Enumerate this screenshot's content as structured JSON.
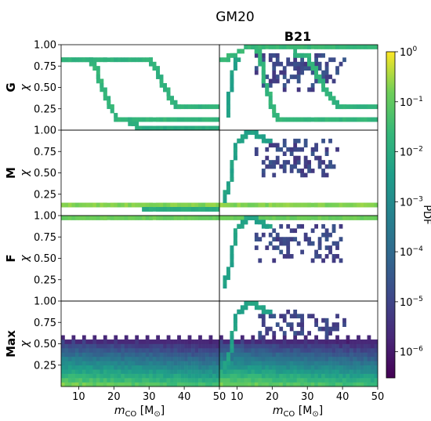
{
  "chart_data": {
    "type": "heatmap",
    "title": "GM20",
    "column_titles": [
      "",
      "B21"
    ],
    "row_labels": [
      "G",
      "M",
      "F",
      "Max"
    ],
    "ylabel": "χ",
    "xlabel_main": "m",
    "xlabel_sub": "CO",
    "xlabel_unit": " [M",
    "xlabel_unit_sub": "⊙",
    "xlabel_close": "]",
    "xlim": [
      5,
      50
    ],
    "ylim": [
      0.0,
      1.0
    ],
    "x_ticks": [
      10,
      20,
      30,
      40,
      50
    ],
    "y_ticks": [
      "0.25",
      "0.50",
      "0.75",
      "1.00"
    ],
    "colorbar": {
      "label": "PDF",
      "scale": "log",
      "range": [
        3e-07,
        1
      ],
      "ticks": [
        {
          "value": 1.0,
          "base": "10",
          "exp": "0"
        },
        {
          "value": 0.1,
          "base": "10",
          "exp": "−1"
        },
        {
          "value": 0.01,
          "base": "10",
          "exp": "−2"
        },
        {
          "value": 0.001,
          "base": "10",
          "exp": "−3"
        },
        {
          "value": 0.0001,
          "base": "10",
          "exp": "−4"
        },
        {
          "value": 1e-05,
          "base": "10",
          "exp": "−5"
        },
        {
          "value": 1e-06,
          "base": "10",
          "exp": "−6"
        }
      ]
    },
    "panels": [
      {
        "row": "G",
        "model": "GM20",
        "tracks": [
          {
            "x": [
              5,
              13,
              15,
              17,
              19,
              21,
              50
            ],
            "y": [
              0.84,
              0.84,
              0.7,
              0.48,
              0.28,
              0.12,
              0.12
            ],
            "level": -1.7
          },
          {
            "x": [
              5,
              30,
              32,
              34,
              36,
              38,
              50
            ],
            "y": [
              0.84,
              0.84,
              0.7,
              0.52,
              0.38,
              0.26,
              0.26
            ],
            "level": -1.8
          },
          {
            "x": [
              24,
              27,
              50
            ],
            "y": [
              0.12,
              0.03,
              0.03
            ],
            "level": -2.0
          }
        ],
        "cloud": null,
        "max_fill": false
      },
      {
        "row": "G",
        "model": "B21",
        "tracks": [
          {
            "x": [
              5,
              7,
              9,
              12,
              14,
              50
            ],
            "y": [
              0.84,
              0.84,
              0.88,
              0.95,
              0.98,
              0.98
            ],
            "level": -1.6
          },
          {
            "x": [
              7,
              8,
              9,
              10
            ],
            "y": [
              0.15,
              0.45,
              0.7,
              0.84
            ],
            "level": -2.3
          },
          {
            "x": [
              14,
              16,
              17,
              18,
              19,
              20,
              22,
              50
            ],
            "y": [
              0.98,
              0.9,
              0.75,
              0.55,
              0.4,
              0.25,
              0.1,
              0.1
            ],
            "level": -1.7
          },
          {
            "x": [
              26,
              30,
              32,
              34,
              36,
              38,
              40,
              50
            ],
            "y": [
              0.9,
              0.85,
              0.7,
              0.55,
              0.42,
              0.3,
              0.25,
              0.25
            ],
            "level": -1.8
          }
        ],
        "cloud": {
          "x0": 15,
          "x1": 41,
          "y0": 0.45,
          "y1": 0.9
        },
        "max_fill": false
      },
      {
        "row": "M",
        "model": "GM20",
        "tracks": [
          {
            "x": [
              5,
              50
            ],
            "y": [
              0.1,
              0.1
            ],
            "level": -0.7
          },
          {
            "x": [
              28,
              50
            ],
            "y": [
              0.07,
              0.07
            ],
            "level": -2.0
          }
        ],
        "cloud": null,
        "max_fill": false
      },
      {
        "row": "M",
        "model": "B21",
        "tracks": [
          {
            "x": [
              5,
              50
            ],
            "y": [
              0.1,
              0.1
            ],
            "level": -0.7
          },
          {
            "x": [
              6,
              8,
              9,
              10,
              12,
              14,
              17,
              19
            ],
            "y": [
              0.15,
              0.4,
              0.65,
              0.85,
              0.94,
              0.97,
              0.93,
              0.85
            ],
            "level": -2.3
          }
        ],
        "cloud": {
          "x0": 15,
          "x1": 41,
          "y0": 0.45,
          "y1": 0.9
        },
        "max_fill": false
      },
      {
        "row": "F",
        "model": "GM20",
        "tracks": [
          {
            "x": [
              5,
              50
            ],
            "y": [
              0.99,
              0.99
            ],
            "level": -0.9
          }
        ],
        "cloud": null,
        "max_fill": false
      },
      {
        "row": "F",
        "model": "B21",
        "tracks": [
          {
            "x": [
              5,
              50
            ],
            "y": [
              0.99,
              0.99
            ],
            "level": -0.9
          },
          {
            "x": [
              6,
              8,
              9,
              10,
              12,
              14,
              17,
              19
            ],
            "y": [
              0.15,
              0.4,
              0.65,
              0.85,
              0.94,
              0.97,
              0.93,
              0.85
            ],
            "level": -2.3
          }
        ],
        "cloud": {
          "x0": 15,
          "x1": 41,
          "y0": 0.45,
          "y1": 0.9
        },
        "max_fill": false
      },
      {
        "row": "Max",
        "model": "GM20",
        "tracks": [],
        "cloud": null,
        "max_fill": true
      },
      {
        "row": "Max",
        "model": "B21",
        "tracks": [
          {
            "x": [
              6,
              8,
              9,
              10,
              12,
              14,
              17,
              19
            ],
            "y": [
              0.15,
              0.4,
              0.65,
              0.85,
              0.94,
              0.97,
              0.93,
              0.85
            ],
            "level": -2.3
          }
        ],
        "cloud": {
          "x0": 15,
          "x1": 41,
          "y0": 0.55,
          "y1": 0.9
        },
        "max_fill": true
      }
    ]
  }
}
